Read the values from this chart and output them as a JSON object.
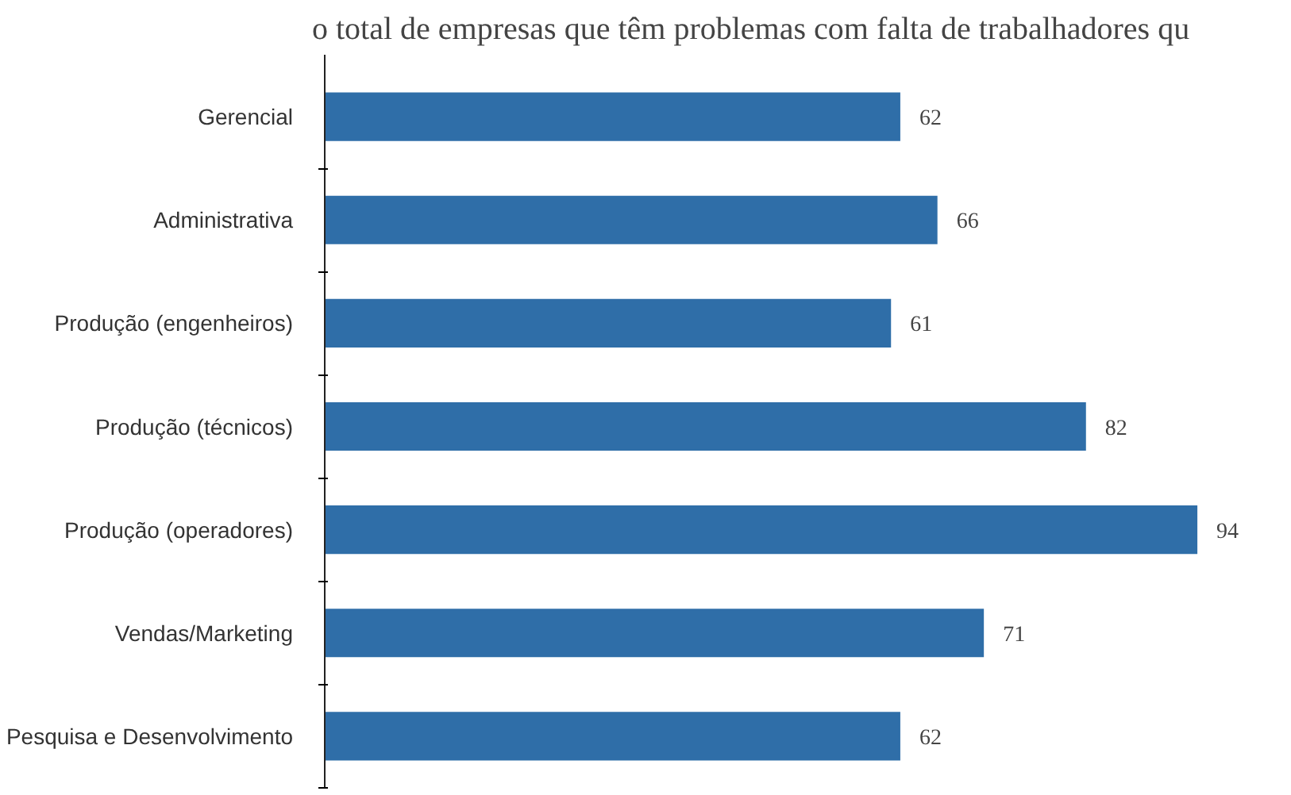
{
  "chart_data": {
    "type": "bar",
    "orientation": "horizontal",
    "title": "o total de empresas que têm problemas com falta de trabalhadores qu",
    "categories": [
      "Gerencial",
      "Administrativa",
      "Produção (engenheiros)",
      "Produção (técnicos)",
      "Produção (operadores)",
      "Vendas/Marketing",
      "Pesquisa e Desenvolvimento"
    ],
    "values": [
      62,
      66,
      61,
      82,
      94,
      71,
      62
    ],
    "color": "#2f6ea8",
    "data_labels": true,
    "tick_labels": "y",
    "grid": false
  }
}
